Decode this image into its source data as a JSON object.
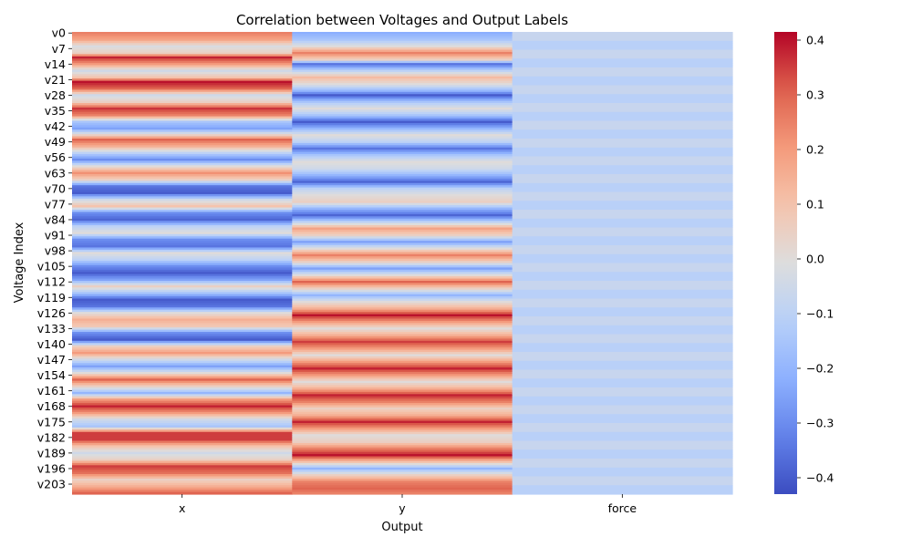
{
  "chart_data": {
    "type": "heatmap",
    "title": "Correlation between Voltages and Output Labels",
    "xlabel": "Output",
    "ylabel": "Voltage Index",
    "columns": [
      "x",
      "y",
      "force"
    ],
    "row_prefix": "v",
    "row_count": 208,
    "row_tick_step": 7,
    "colorbar": {
      "vmin": -0.43,
      "vmax": 0.415,
      "ticks": [
        -0.4,
        -0.3,
        -0.2,
        -0.1,
        0.0,
        0.1,
        0.2,
        0.3,
        0.4
      ],
      "colormap": "coolwarm"
    },
    "profiles": {
      "x": [
        [
          0,
          0.25
        ],
        [
          3,
          0.18
        ],
        [
          6,
          -0.02
        ],
        [
          9,
          0.05
        ],
        [
          11,
          0.38
        ],
        [
          14,
          0.2
        ],
        [
          17,
          -0.05
        ],
        [
          20,
          0.1
        ],
        [
          22,
          0.4
        ],
        [
          25,
          0.3
        ],
        [
          28,
          -0.05
        ],
        [
          31,
          0.05
        ],
        [
          34,
          0.36
        ],
        [
          37,
          0.25
        ],
        [
          40,
          -0.15
        ],
        [
          43,
          -0.25
        ],
        [
          46,
          0.05
        ],
        [
          48,
          0.3
        ],
        [
          51,
          0.15
        ],
        [
          54,
          -0.1
        ],
        [
          57,
          -0.3
        ],
        [
          60,
          0.0
        ],
        [
          63,
          0.22
        ],
        [
          66,
          0.05
        ],
        [
          69,
          -0.35
        ],
        [
          72,
          -0.4
        ],
        [
          75,
          -0.05
        ],
        [
          78,
          0.1
        ],
        [
          81,
          -0.3
        ],
        [
          84,
          -0.38
        ],
        [
          87,
          -0.1
        ],
        [
          90,
          0.0
        ],
        [
          93,
          -0.3
        ],
        [
          96,
          -0.35
        ],
        [
          99,
          0.0
        ],
        [
          102,
          -0.1
        ],
        [
          105,
          -0.3
        ],
        [
          108,
          -0.4
        ],
        [
          111,
          -0.25
        ],
        [
          114,
          0.05
        ],
        [
          117,
          -0.15
        ],
        [
          120,
          -0.4
        ],
        [
          123,
          -0.35
        ],
        [
          126,
          0.0
        ],
        [
          129,
          0.15
        ],
        [
          132,
          0.08
        ],
        [
          135,
          -0.3
        ],
        [
          138,
          -0.4
        ],
        [
          141,
          0.05
        ],
        [
          144,
          0.2
        ],
        [
          147,
          -0.05
        ],
        [
          150,
          -0.25
        ],
        [
          153,
          0.0
        ],
        [
          156,
          0.3
        ],
        [
          159,
          0.05
        ],
        [
          162,
          -0.2
        ],
        [
          165,
          0.2
        ],
        [
          168,
          0.38
        ],
        [
          171,
          0.2
        ],
        [
          174,
          -0.05
        ],
        [
          177,
          -0.15
        ],
        [
          180,
          0.35
        ],
        [
          183,
          0.35
        ],
        [
          186,
          0.1
        ],
        [
          189,
          -0.05
        ],
        [
          192,
          0.05
        ],
        [
          195,
          0.35
        ],
        [
          198,
          0.28
        ],
        [
          201,
          0.05
        ],
        [
          204,
          0.15
        ],
        [
          207,
          0.3
        ]
      ],
      "y": [
        [
          0,
          -0.22
        ],
        [
          3,
          -0.15
        ],
        [
          6,
          0.0
        ],
        [
          9,
          0.25
        ],
        [
          12,
          0.05
        ],
        [
          14,
          -0.35
        ],
        [
          17,
          -0.1
        ],
        [
          20,
          0.12
        ],
        [
          23,
          0.0
        ],
        [
          26,
          -0.2
        ],
        [
          28,
          -0.4
        ],
        [
          31,
          -0.15
        ],
        [
          34,
          0.0
        ],
        [
          37,
          -0.15
        ],
        [
          40,
          -0.4
        ],
        [
          43,
          -0.2
        ],
        [
          46,
          0.0
        ],
        [
          49,
          -0.1
        ],
        [
          52,
          -0.35
        ],
        [
          55,
          -0.15
        ],
        [
          58,
          0.0
        ],
        [
          61,
          -0.05
        ],
        [
          64,
          -0.2
        ],
        [
          67,
          -0.38
        ],
        [
          70,
          -0.1
        ],
        [
          73,
          0.0
        ],
        [
          76,
          0.05
        ],
        [
          79,
          -0.2
        ],
        [
          82,
          -0.38
        ],
        [
          85,
          -0.1
        ],
        [
          88,
          0.18
        ],
        [
          91,
          0.05
        ],
        [
          94,
          -0.25
        ],
        [
          97,
          0.0
        ],
        [
          100,
          0.25
        ],
        [
          103,
          0.05
        ],
        [
          106,
          -0.25
        ],
        [
          109,
          0.0
        ],
        [
          112,
          0.3
        ],
        [
          115,
          0.05
        ],
        [
          118,
          -0.2
        ],
        [
          121,
          0.0
        ],
        [
          124,
          0.15
        ],
        [
          127,
          0.4
        ],
        [
          130,
          0.2
        ],
        [
          133,
          0.0
        ],
        [
          136,
          0.15
        ],
        [
          139,
          0.35
        ],
        [
          142,
          0.2
        ],
        [
          145,
          0.0
        ],
        [
          148,
          0.2
        ],
        [
          151,
          0.38
        ],
        [
          154,
          0.2
        ],
        [
          157,
          0.0
        ],
        [
          160,
          0.15
        ],
        [
          163,
          0.38
        ],
        [
          166,
          0.25
        ],
        [
          169,
          0.05
        ],
        [
          172,
          0.15
        ],
        [
          175,
          0.38
        ],
        [
          178,
          0.2
        ],
        [
          181,
          0.0
        ],
        [
          184,
          0.05
        ],
        [
          187,
          0.25
        ],
        [
          190,
          0.4
        ],
        [
          193,
          0.1
        ],
        [
          196,
          -0.2
        ],
        [
          199,
          0.05
        ],
        [
          202,
          0.25
        ],
        [
          205,
          0.3
        ],
        [
          207,
          0.25
        ]
      ],
      "force": [
        [
          0,
          -0.07
        ],
        [
          207,
          -0.07
        ]
      ]
    },
    "force_alt": -0.11
  }
}
